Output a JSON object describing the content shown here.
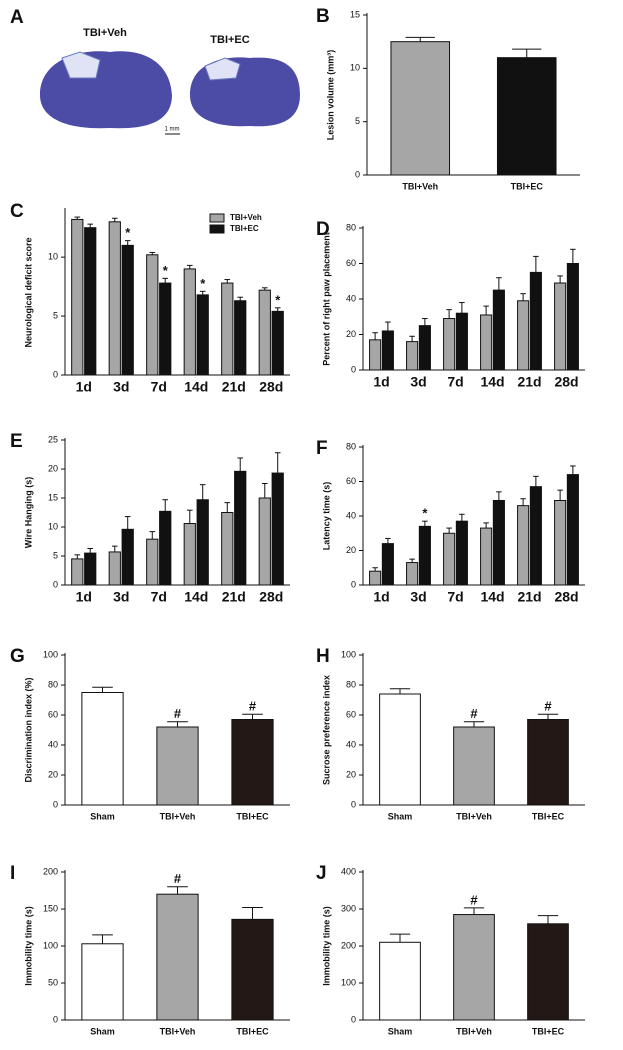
{
  "image_panel": {
    "panel": "A",
    "labels": [
      "TBI+Veh",
      "TBI+EC"
    ],
    "scale_label": "1 mm"
  },
  "chart_data": [
    {
      "type": "bar",
      "panel": "B",
      "ylabel": "Lesion volume (mm³)",
      "categories": [
        "TBI+Veh",
        "TBI+EC"
      ],
      "values": [
        12.5,
        11.0
      ],
      "errors": [
        0.4,
        0.8
      ],
      "colors": [
        "#a6a6a6",
        "#111111"
      ],
      "ylim": [
        0,
        15
      ],
      "yticks": [
        0,
        5,
        10,
        15
      ]
    },
    {
      "type": "bar",
      "panel": "C",
      "ylabel": "Neurological deficit score",
      "categories": [
        "1d",
        "3d",
        "7d",
        "14d",
        "21d",
        "28d"
      ],
      "legend": "upper right",
      "ylim": [
        0,
        14
      ],
      "yticks": [
        0,
        5,
        10
      ],
      "series": [
        {
          "name": "TBI+Veh",
          "color": "#a6a6a6",
          "values": [
            13.2,
            13.0,
            10.2,
            9.0,
            7.8,
            7.2
          ],
          "errors": [
            0.2,
            0.3,
            0.2,
            0.3,
            0.3,
            0.2
          ]
        },
        {
          "name": "TBI+EC",
          "color": "#111111",
          "values": [
            12.5,
            11.0,
            7.8,
            6.8,
            6.3,
            5.4
          ],
          "errors": [
            0.3,
            0.4,
            0.4,
            0.3,
            0.3,
            0.3
          ],
          "sig_labels": [
            null,
            "*",
            "*",
            "*",
            null,
            "*"
          ]
        }
      ]
    },
    {
      "type": "bar",
      "panel": "D",
      "ylabel": "Percent of right paw placement",
      "categories": [
        "1d",
        "3d",
        "7d",
        "14d",
        "21d",
        "28d"
      ],
      "ylim": [
        0,
        80
      ],
      "yticks": [
        0,
        20,
        40,
        60,
        80
      ],
      "series": [
        {
          "name": "TBI+Veh",
          "color": "#a6a6a6",
          "values": [
            17,
            16,
            29,
            31,
            39,
            49
          ],
          "errors": [
            4,
            3,
            5,
            5,
            4,
            4
          ]
        },
        {
          "name": "TBI+EC",
          "color": "#111111",
          "values": [
            22,
            25,
            32,
            45,
            55,
            60
          ],
          "errors": [
            5,
            4,
            6,
            7,
            9,
            8
          ]
        }
      ]
    },
    {
      "type": "bar",
      "panel": "E",
      "ylabel": "Wire Hanging (s)",
      "categories": [
        "1d",
        "3d",
        "7d",
        "14d",
        "21d",
        "28d"
      ],
      "ylim": [
        0,
        25
      ],
      "yticks": [
        0,
        5,
        10,
        15,
        20,
        25
      ],
      "series": [
        {
          "name": "TBI+Veh",
          "color": "#a6a6a6",
          "values": [
            4.5,
            5.7,
            7.9,
            10.6,
            12.5,
            15.0
          ],
          "errors": [
            0.7,
            1.0,
            1.3,
            2.3,
            1.7,
            2.5
          ]
        },
        {
          "name": "TBI+EC",
          "color": "#111111",
          "values": [
            5.5,
            9.6,
            12.7,
            14.7,
            19.6,
            19.3
          ],
          "errors": [
            0.8,
            2.2,
            2.0,
            2.6,
            2.3,
            3.5
          ]
        }
      ]
    },
    {
      "type": "bar",
      "panel": "F",
      "ylabel": "Latency time (s)",
      "categories": [
        "1d",
        "3d",
        "7d",
        "14d",
        "21d",
        "28d"
      ],
      "ylim": [
        0,
        80
      ],
      "yticks": [
        0,
        20,
        40,
        60,
        80
      ],
      "series": [
        {
          "name": "TBI+Veh",
          "color": "#a6a6a6",
          "values": [
            8,
            13,
            30,
            33,
            46,
            49
          ],
          "errors": [
            2,
            2,
            3,
            3,
            4,
            6
          ]
        },
        {
          "name": "TBI+EC",
          "color": "#111111",
          "values": [
            24,
            34,
            37,
            49,
            57,
            64
          ],
          "errors": [
            3,
            3,
            4,
            5,
            6,
            5
          ],
          "sig_labels": [
            null,
            "*",
            null,
            null,
            null,
            null
          ]
        }
      ]
    },
    {
      "type": "bar",
      "panel": "G",
      "ylabel": "Discrimination index (%)",
      "categories": [
        "Sham",
        "TBI+Veh",
        "TBI+EC"
      ],
      "values": [
        75,
        52,
        57
      ],
      "errors": [
        3.5,
        3.5,
        3.5
      ],
      "colors": [
        "#ffffff",
        "#a6a6a6",
        "#231815"
      ],
      "sig_labels": [
        null,
        "#",
        "#"
      ],
      "ylim": [
        0,
        100
      ],
      "yticks": [
        0,
        20,
        40,
        60,
        80,
        100
      ]
    },
    {
      "type": "bar",
      "panel": "H",
      "ylabel": "Sucrose preference index",
      "categories": [
        "Sham",
        "TBI+Veh",
        "TBI+EC"
      ],
      "values": [
        74,
        52,
        57
      ],
      "errors": [
        3.5,
        3.5,
        3.5
      ],
      "colors": [
        "#ffffff",
        "#a6a6a6",
        "#231815"
      ],
      "sig_labels": [
        null,
        "#",
        "#"
      ],
      "ylim": [
        0,
        100
      ],
      "yticks": [
        0,
        20,
        40,
        60,
        80,
        100
      ]
    },
    {
      "type": "bar",
      "panel": "I",
      "ylabel": "Immobility time (s)",
      "categories": [
        "Sham",
        "TBI+Veh",
        "TBI+EC"
      ],
      "values": [
        103,
        170,
        136
      ],
      "errors": [
        12,
        10,
        16
      ],
      "colors": [
        "#ffffff",
        "#a6a6a6",
        "#231815"
      ],
      "sig_labels": [
        null,
        "#",
        null
      ],
      "ylim": [
        0,
        200
      ],
      "yticks": [
        0,
        50,
        100,
        150,
        200
      ]
    },
    {
      "type": "bar",
      "panel": "J",
      "ylabel": "Immobility time (s)",
      "categories": [
        "Sham",
        "TBI+Veh",
        "TBI+EC"
      ],
      "values": [
        210,
        285,
        260
      ],
      "errors": [
        22,
        18,
        22
      ],
      "colors": [
        "#ffffff",
        "#a6a6a6",
        "#231815"
      ],
      "sig_labels": [
        null,
        "#",
        null
      ],
      "ylim": [
        0,
        400
      ],
      "yticks": [
        0,
        100,
        200,
        300,
        400
      ]
    }
  ]
}
